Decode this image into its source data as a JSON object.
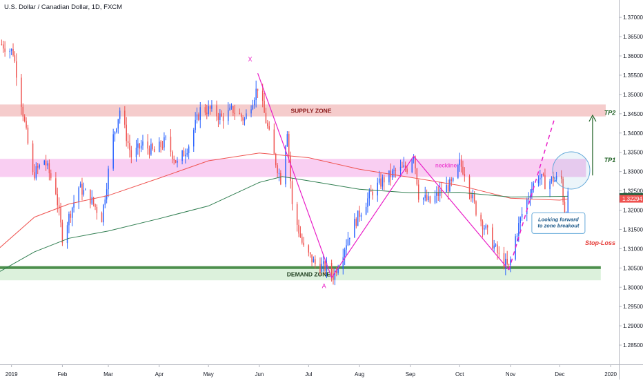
{
  "header": {
    "title": "U.S. Dollar / Canadian Dollar, 1D, FXCM"
  },
  "colors": {
    "up": "#2962ff",
    "down": "#ef5350",
    "ema_fast": "#ef5350",
    "ema_slow": "#2e7d4f",
    "supply_fill": "#f4c7c7",
    "resistance_fill": "#f8c6f0",
    "demand_fill": "#d8efd8",
    "demand_line": "#4c8f4c",
    "pattern": "#e91ec7",
    "green_arrow": "#1b5e20",
    "circle": "#64a9d9",
    "price_tag": "#1b5e3a",
    "ema_tag": "#ef5350",
    "stop_loss": "#e53935"
  },
  "chart_data": {
    "type": "candlestick",
    "ylim": [
      1.28,
      1.3745
    ],
    "yticks": [
      "1.37000",
      "1.36500",
      "1.36000",
      "1.35500",
      "1.35000",
      "1.34500",
      "1.34000",
      "1.33500",
      "1.33000",
      "1.32500",
      "1.32000",
      "1.31500",
      "1.31000",
      "1.30500",
      "1.30000",
      "1.29500",
      "1.29000",
      "1.28500"
    ],
    "xticks": [
      "2019",
      "Feb",
      "Mar",
      "Apr",
      "May",
      "Jun",
      "Jul",
      "Aug",
      "Sep",
      "Oct",
      "Nov",
      "Dec",
      "2020"
    ],
    "xtick_dates": [
      "2019-01-01",
      "2019-02-01",
      "2019-03-01",
      "2019-04-01",
      "2019-05-01",
      "2019-06-01",
      "2019-07-01",
      "2019-08-01",
      "2019-09-01",
      "2019-10-01",
      "2019-11-01",
      "2019-12-01",
      "2020-01-01"
    ],
    "xlim": [
      "2018-12-25",
      "2020-01-06"
    ],
    "last_price": "1.32341",
    "ema_value": "1.32294",
    "close_path": [
      [
        "2018-12-26",
        1.363
      ],
      [
        "2019-01-02",
        1.361
      ],
      [
        "2019-01-07",
        1.348
      ],
      [
        "2019-01-14",
        1.329
      ],
      [
        "2019-01-21",
        1.333
      ],
      [
        "2019-01-28",
        1.325
      ],
      [
        "2019-02-01",
        1.313
      ],
      [
        "2019-02-04",
        1.317
      ],
      [
        "2019-02-11",
        1.326
      ],
      [
        "2019-02-18",
        1.323
      ],
      [
        "2019-02-25",
        1.318
      ],
      [
        "2019-03-04",
        1.339
      ],
      [
        "2019-03-08",
        1.346
      ],
      [
        "2019-03-15",
        1.334
      ],
      [
        "2019-03-22",
        1.337
      ],
      [
        "2019-03-29",
        1.335
      ],
      [
        "2019-04-05",
        1.338
      ],
      [
        "2019-04-12",
        1.332
      ],
      [
        "2019-04-19",
        1.337
      ],
      [
        "2019-04-26",
        1.346
      ],
      [
        "2019-05-02",
        1.346
      ],
      [
        "2019-05-09",
        1.344
      ],
      [
        "2019-05-16",
        1.346
      ],
      [
        "2019-05-23",
        1.3435
      ],
      [
        "2019-05-31",
        1.352
      ],
      [
        "2019-06-04",
        1.345
      ],
      [
        "2019-06-10",
        1.334
      ],
      [
        "2019-06-14",
        1.328
      ],
      [
        "2019-06-18",
        1.341
      ],
      [
        "2019-06-21",
        1.321
      ],
      [
        "2019-06-28",
        1.31
      ],
      [
        "2019-07-05",
        1.306
      ],
      [
        "2019-07-12",
        1.305
      ],
      [
        "2019-07-16",
        1.303
      ],
      [
        "2019-07-19",
        1.306
      ],
      [
        "2019-07-26",
        1.314
      ],
      [
        "2019-08-02",
        1.32
      ],
      [
        "2019-08-09",
        1.325
      ],
      [
        "2019-08-16",
        1.328
      ],
      [
        "2019-08-23",
        1.33
      ],
      [
        "2019-08-30",
        1.331
      ],
      [
        "2019-09-03",
        1.335
      ],
      [
        "2019-09-06",
        1.324
      ],
      [
        "2019-09-13",
        1.322
      ],
      [
        "2019-09-20",
        1.325
      ],
      [
        "2019-09-27",
        1.327
      ],
      [
        "2019-10-01",
        1.332
      ],
      [
        "2019-10-04",
        1.33
      ],
      [
        "2019-10-11",
        1.32
      ],
      [
        "2019-10-18",
        1.314
      ],
      [
        "2019-10-25",
        1.308
      ],
      [
        "2019-10-31",
        1.305
      ],
      [
        "2019-11-04",
        1.313
      ],
      [
        "2019-11-08",
        1.319
      ],
      [
        "2019-11-13",
        1.325
      ],
      [
        "2019-11-18",
        1.329
      ],
      [
        "2019-11-22",
        1.327
      ],
      [
        "2019-11-27",
        1.328
      ],
      [
        "2019-12-02",
        1.328
      ],
      [
        "2019-12-04",
        1.318
      ],
      [
        "2019-12-06",
        1.3234
      ]
    ],
    "ema_fast": [
      [
        "2018-12-25",
        1.3103
      ],
      [
        "2019-01-15",
        1.3182
      ],
      [
        "2019-02-05",
        1.3216
      ],
      [
        "2019-03-01",
        1.3238
      ],
      [
        "2019-04-01",
        1.3283
      ],
      [
        "2019-05-01",
        1.3328
      ],
      [
        "2019-06-01",
        1.3348
      ],
      [
        "2019-07-01",
        1.3336
      ],
      [
        "2019-08-01",
        1.3306
      ],
      [
        "2019-09-01",
        1.3285
      ],
      [
        "2019-10-01",
        1.3264
      ],
      [
        "2019-11-01",
        1.3231
      ],
      [
        "2019-12-01",
        1.3226
      ],
      [
        "2019-12-06",
        1.3229
      ]
    ],
    "ema_slow": [
      [
        "2018-12-25",
        1.3041
      ],
      [
        "2019-01-15",
        1.3092
      ],
      [
        "2019-02-05",
        1.3127
      ],
      [
        "2019-03-01",
        1.3146
      ],
      [
        "2019-04-01",
        1.3178
      ],
      [
        "2019-05-01",
        1.3211
      ],
      [
        "2019-06-01",
        1.3272
      ],
      [
        "2019-06-15",
        1.3287
      ],
      [
        "2019-07-01",
        1.3276
      ],
      [
        "2019-08-01",
        1.3254
      ],
      [
        "2019-09-01",
        1.3245
      ],
      [
        "2019-10-01",
        1.3246
      ],
      [
        "2019-11-01",
        1.3234
      ],
      [
        "2019-12-06",
        1.3236
      ]
    ],
    "zones": [
      {
        "label": "SUPPLY ZONE",
        "y0": 1.3443,
        "y1": 1.3474,
        "x0": "2018-12-25",
        "x1": "2019-12-29"
      },
      {
        "label": "",
        "y0": 1.3286,
        "y1": 1.3333,
        "x0": "2018-12-25",
        "x1": "2019-12-17"
      },
      {
        "label": "DEMAND ZONE",
        "y0": 1.3018,
        "y1": 1.3051,
        "x0": "2018-12-25",
        "x1": "2019-12-26"
      }
    ],
    "pattern": {
      "points": [
        {
          "label": "X",
          "date": "2019-05-31",
          "price": 1.3555
        },
        {
          "label": "A",
          "date": "2019-07-15",
          "price": 1.3025
        },
        {
          "label": "",
          "date": "2019-09-03",
          "price": 1.334
        },
        {
          "label": "",
          "date": "2019-10-31",
          "price": 1.3045
        }
      ],
      "projection": [
        {
          "date": "2019-10-31",
          "price": 1.3045
        },
        {
          "date": "2019-11-28",
          "price": 1.344
        }
      ],
      "neckline_label": "neckline"
    },
    "targets": [
      {
        "label": "TP2",
        "price": 1.3452
      },
      {
        "label": "TP1",
        "price": 1.333
      }
    ],
    "stop_loss": {
      "label": "Stop-Loss",
      "price": 1.3115
    },
    "callout": "Looking forward\nto zone breakout"
  }
}
